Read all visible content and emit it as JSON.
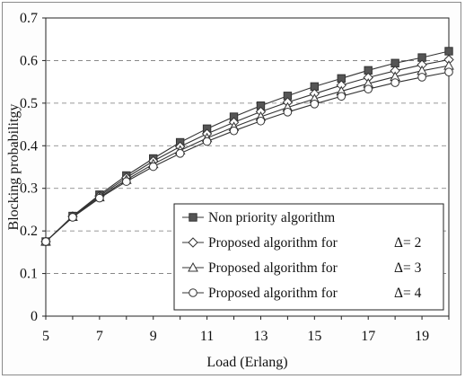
{
  "chart_data": {
    "type": "line",
    "title": "",
    "xlabel": "Load (Erlang)",
    "ylabel": "Blocking probabilitgy",
    "xlim": [
      5,
      20
    ],
    "ylim": [
      0,
      0.7
    ],
    "x_ticks": [
      "5",
      "7",
      "9",
      "11",
      "13",
      "15",
      "17",
      "19"
    ],
    "y_ticks": [
      "0",
      "0.1",
      "0.2",
      "0.3",
      "0.4",
      "0.5",
      "0.6",
      "0.7"
    ],
    "grid": "horizontal dashed",
    "legend_position": "bottom-right",
    "x": [
      5,
      6,
      7,
      8,
      9,
      10,
      11,
      12,
      13,
      14,
      15,
      16,
      17,
      18,
      19,
      20
    ],
    "series": [
      {
        "name": "Non priority algorithm",
        "marker": "square",
        "values": [
          0.175,
          0.235,
          0.285,
          0.33,
          0.37,
          0.408,
          0.44,
          0.468,
          0.494,
          0.517,
          0.539,
          0.558,
          0.577,
          0.594,
          0.607,
          0.622
        ]
      },
      {
        "name": "Proposed algorithm for",
        "delta": "Δ= 2",
        "marker": "diamond",
        "values": [
          0.175,
          0.234,
          0.282,
          0.325,
          0.364,
          0.398,
          0.428,
          0.455,
          0.48,
          0.502,
          0.522,
          0.542,
          0.56,
          0.576,
          0.59,
          0.602
        ]
      },
      {
        "name": "Proposed algorithm for",
        "delta": "Δ= 3",
        "marker": "triangle",
        "values": [
          0.175,
          0.233,
          0.279,
          0.32,
          0.357,
          0.389,
          0.418,
          0.444,
          0.468,
          0.49,
          0.51,
          0.528,
          0.546,
          0.562,
          0.576,
          0.588
        ]
      },
      {
        "name": "Proposed algorithm for",
        "delta": "Δ= 4",
        "marker": "circle",
        "values": [
          0.175,
          0.232,
          0.277,
          0.316,
          0.351,
          0.382,
          0.41,
          0.435,
          0.458,
          0.479,
          0.498,
          0.516,
          0.533,
          0.548,
          0.561,
          0.573
        ]
      }
    ]
  }
}
